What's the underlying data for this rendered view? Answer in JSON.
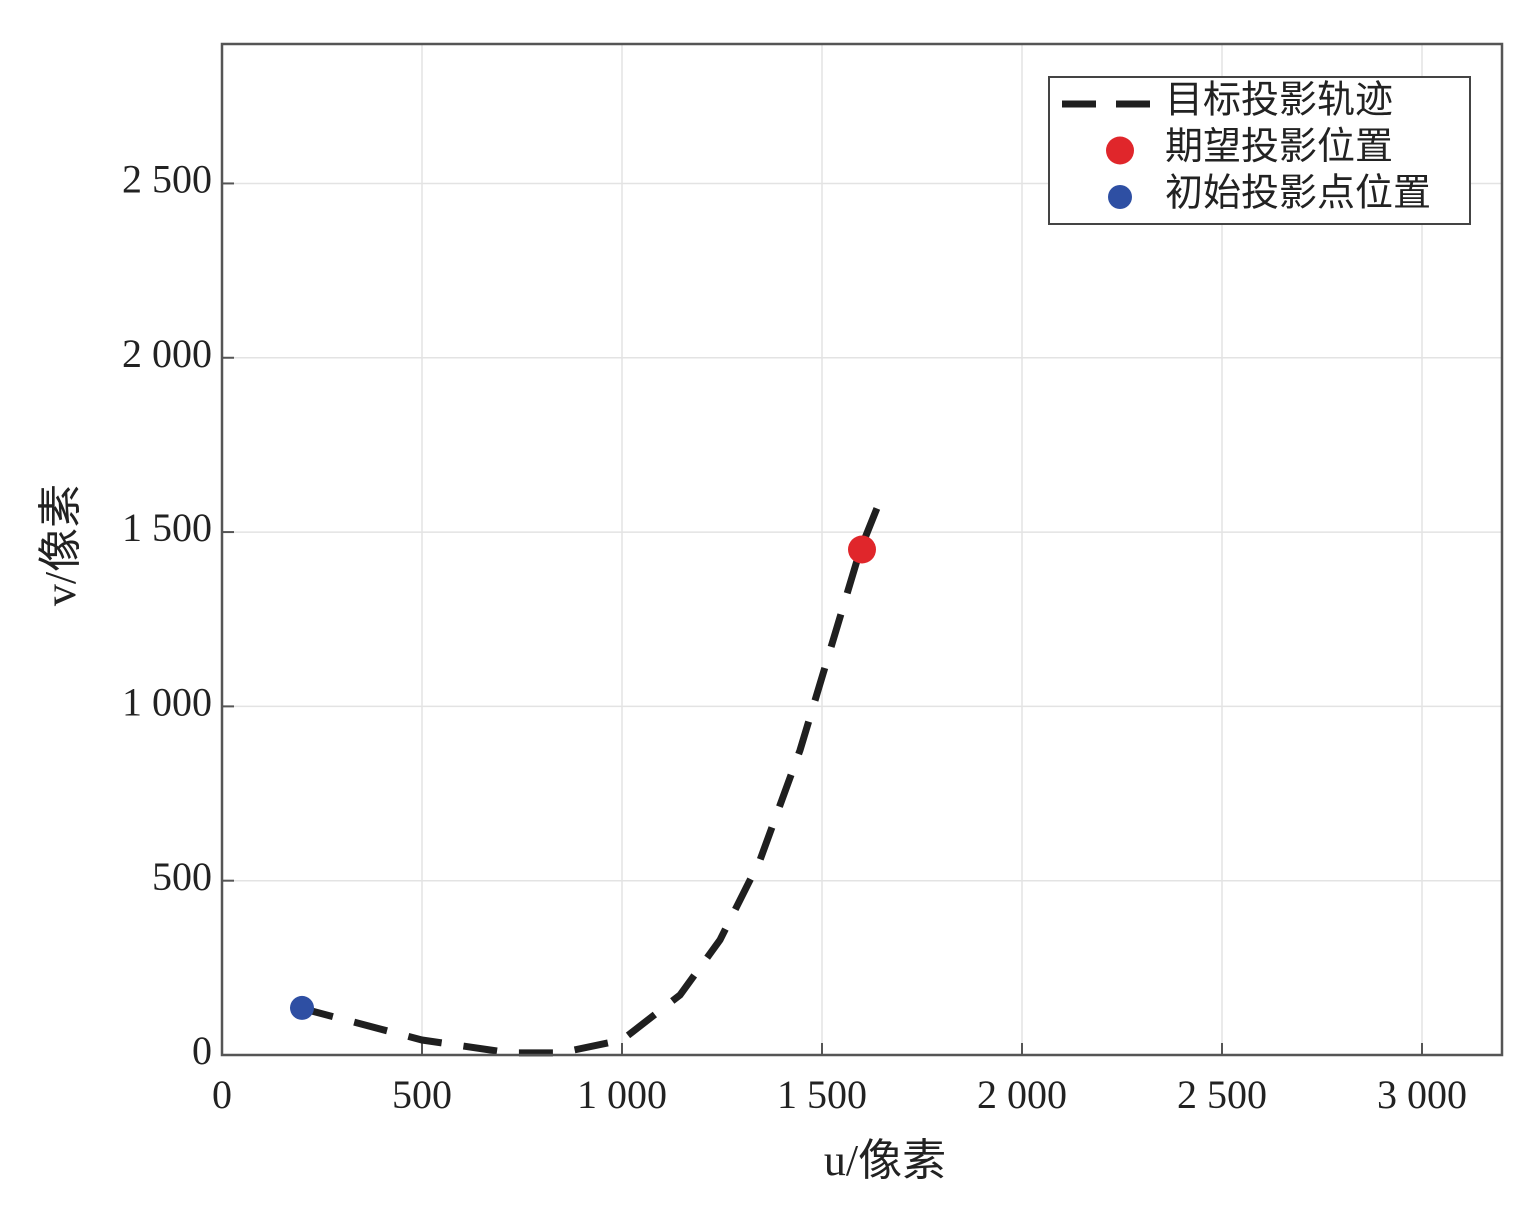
{
  "chart_data": {
    "type": "line",
    "xlabel": "u/像素",
    "ylabel": "v/像素",
    "xlim": [
      0,
      3200
    ],
    "ylim": [
      0,
      2900
    ],
    "xticks": [
      0,
      500,
      {
        "value": 1000,
        "label": "1 000"
      },
      {
        "value": 1500,
        "label": "1 500"
      },
      {
        "value": 2000,
        "label": "2 000"
      },
      {
        "value": 2500,
        "label": "2 500"
      },
      {
        "value": 3000,
        "label": "3 000"
      }
    ],
    "yticks": [
      0,
      500,
      {
        "value": 1000,
        "label": "1 000"
      },
      {
        "value": 1500,
        "label": "1 500"
      },
      {
        "value": 2000,
        "label": "2 000"
      },
      {
        "value": 2500,
        "label": "2 500"
      }
    ],
    "grid": true,
    "legend": "upper right",
    "series": [
      {
        "name": "目标投影轨迹",
        "type": "line",
        "style": "dashed",
        "color": "#1f1f1f",
        "x": [
          195,
          500,
          720,
          845,
          1000,
          1145,
          1245,
          1345,
          1445,
          1520,
          1595,
          1640
        ],
        "values": [
          135,
          43,
          6,
          6,
          43,
          172,
          330,
          559,
          874,
          1160,
          1447,
          1576
        ]
      },
      {
        "name": "期望投影位置",
        "type": "scatter",
        "color": "#e0262b",
        "x": [
          1600
        ],
        "values": [
          1450
        ]
      },
      {
        "name": "初始投影点位置",
        "type": "scatter",
        "color": "#2e4fa3",
        "x": [
          200
        ],
        "values": [
          135
        ]
      }
    ]
  }
}
